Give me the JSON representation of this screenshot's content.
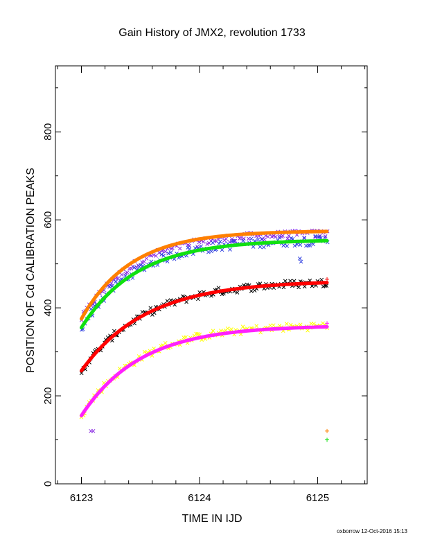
{
  "chart_data": {
    "type": "scatter",
    "title": "Gain History of JMX2, revolution 1733",
    "xlabel": "TIME IN IJD",
    "ylabel": "POSITION OF Cd CALIBRATION PEAKS",
    "xlim": [
      6122.78,
      6125.42
    ],
    "ylim": [
      0,
      950
    ],
    "xticks": [
      6123,
      6124,
      6125
    ],
    "yticks": [
      0,
      200,
      400,
      600,
      800
    ],
    "grid": false,
    "series": [
      {
        "color": "#8a2be2",
        "marker": "x",
        "model": {
          "a": 570,
          "b": 195,
          "tau": 0.45
        },
        "x0": 6123.0,
        "x1": 6125.08,
        "n": 130,
        "noise": 9
      },
      {
        "color": "#ff8000",
        "marker": "line",
        "model": {
          "a": 575,
          "b": 200,
          "tau": 0.42
        },
        "x0": 6123.0,
        "x1": 6125.08
      },
      {
        "color": "#3040e0",
        "marker": "x",
        "model": {
          "a": 555,
          "b": 200,
          "tau": 0.45
        },
        "x0": 6123.0,
        "x1": 6125.08,
        "n": 130,
        "noise": 11
      },
      {
        "color": "#10e010",
        "marker": "line",
        "model": {
          "a": 555,
          "b": 200,
          "tau": 0.47
        },
        "x0": 6123.0,
        "x1": 6125.08
      },
      {
        "color": "#000000",
        "marker": "x",
        "model": {
          "a": 462,
          "b": 205,
          "tau": 0.55
        },
        "x0": 6123.0,
        "x1": 6125.08,
        "n": 130,
        "noise": 9
      },
      {
        "color": "#ff0000",
        "marker": "line",
        "model": {
          "a": 462,
          "b": 205,
          "tau": 0.55
        },
        "x0": 6123.0,
        "x1": 6125.08
      },
      {
        "color": "#ffff00",
        "marker": "x",
        "model": {
          "a": 362,
          "b": 205,
          "tau": 0.5
        },
        "x0": 6123.0,
        "x1": 6125.08,
        "n": 130,
        "noise": 9
      },
      {
        "color": "#ff20ff",
        "marker": "line",
        "model": {
          "a": 360,
          "b": 205,
          "tau": 0.5
        },
        "x0": 6123.0,
        "x1": 6125.08
      }
    ],
    "outliers": [
      {
        "color": "#8a2be2",
        "marker": "x",
        "x": 6123.08,
        "y": 120
      },
      {
        "color": "#8a2be2",
        "marker": "x",
        "x": 6123.1,
        "y": 120
      },
      {
        "color": "#3040e0",
        "marker": "x",
        "x": 6124.85,
        "y": 512
      },
      {
        "color": "#3040e0",
        "marker": "x",
        "x": 6124.86,
        "y": 505
      },
      {
        "color": "#ff8000",
        "marker": "+",
        "x": 6125.08,
        "y": 120
      },
      {
        "color": "#10e010",
        "marker": "+",
        "x": 6125.08,
        "y": 100
      },
      {
        "color": "#ff0000",
        "marker": "+",
        "x": 6125.08,
        "y": 465
      },
      {
        "color": "#ff20ff",
        "marker": "+",
        "x": 6125.08,
        "y": 365
      }
    ]
  },
  "footer": "oxborrow 12-Oct-2016 15:13"
}
